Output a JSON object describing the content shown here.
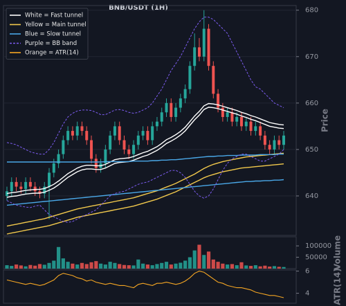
{
  "chart_data": [
    {
      "type": "candlestick",
      "title": "BNB/USDT (1H)",
      "y_label": "Price",
      "ylim": [
        631.5,
        681
      ],
      "yticks": [
        640,
        650,
        660,
        670,
        680
      ],
      "grid": true,
      "legend": "upper left",
      "up_color": "#26a69a",
      "down_color": "#ef5350",
      "open": [
        640,
        641,
        643,
        642,
        641.5,
        643,
        642,
        641,
        640.5,
        642,
        645,
        647,
        649,
        652,
        654,
        653,
        655,
        654,
        652,
        648,
        646,
        647,
        650,
        653,
        655,
        652,
        650,
        649,
        651,
        653,
        654,
        652,
        655,
        656,
        658,
        660,
        657,
        659,
        661,
        663,
        668,
        672,
        670,
        676,
        668,
        662,
        659,
        657,
        658,
        656,
        657,
        655,
        656,
        654,
        655,
        653,
        651,
        650,
        652,
        651
      ],
      "high": [
        642,
        644,
        644,
        643,
        644,
        644,
        643,
        642,
        643,
        646,
        648,
        650,
        653,
        655,
        655,
        656,
        656,
        655,
        653,
        649,
        648,
        651,
        654,
        656,
        656,
        653,
        651,
        652,
        654,
        655,
        655,
        656,
        657,
        659,
        661,
        661,
        660,
        662,
        664,
        669,
        675,
        674,
        680,
        677,
        669,
        663,
        660,
        659,
        659,
        658,
        658,
        657,
        657,
        656,
        656,
        654,
        652,
        653,
        653,
        654
      ],
      "low": [
        639,
        640,
        641,
        640.5,
        640.5,
        641,
        640,
        639.5,
        639.5,
        635,
        644,
        646,
        648,
        651,
        652,
        652,
        653,
        651,
        647,
        645,
        645,
        646,
        649,
        652,
        651,
        649,
        648,
        648,
        650,
        652,
        651,
        651,
        654,
        655,
        657,
        656,
        656,
        658,
        660,
        662,
        667,
        669,
        669,
        667,
        661,
        658,
        656,
        656,
        655,
        655,
        654,
        654,
        653,
        653,
        652,
        650,
        649,
        649,
        650,
        650
      ],
      "close": [
        641,
        643,
        642,
        641.5,
        643,
        642,
        641,
        640.5,
        642,
        645,
        647,
        649,
        652,
        654,
        653,
        655,
        654,
        652,
        648,
        646,
        647,
        650,
        653,
        655,
        652,
        650,
        649,
        651,
        653,
        654,
        652,
        655,
        656,
        658,
        660,
        657,
        659,
        661,
        663,
        668,
        672,
        670,
        676,
        668,
        662,
        659,
        657,
        658,
        656,
        657,
        655,
        656,
        654,
        655,
        653,
        651,
        650,
        652,
        651,
        653
      ],
      "bands": [
        {
          "name": "White = Fast tunnel",
          "color": "#ffffff",
          "dash": false,
          "upper": [
            640.5,
            640.7,
            640.8,
            641,
            641.2,
            641.3,
            641.4,
            641.4,
            641.6,
            642,
            642.5,
            643.2,
            644,
            644.8,
            645.4,
            646,
            646.4,
            646.6,
            646.6,
            646.5,
            646.5,
            646.8,
            647.3,
            647.8,
            648,
            648.1,
            648.2,
            648.5,
            648.9,
            649.3,
            649.6,
            650.1,
            650.6,
            651.3,
            652.1,
            652.6,
            653.2,
            653.9,
            654.8,
            656,
            657.2,
            658.2,
            659.4,
            659.9,
            659.8,
            659.6,
            659.3,
            659,
            658.7,
            658.4,
            658,
            657.7,
            657.3,
            657,
            656.6,
            656.2,
            655.8,
            655.6,
            655.4,
            655.3
          ],
          "lower": [
            639.7,
            639.9,
            640,
            640.2,
            640.4,
            640.5,
            640.6,
            640.6,
            640.8,
            641.2,
            641.7,
            642.4,
            643.2,
            644,
            644.6,
            645.2,
            645.6,
            645.8,
            645.8,
            645.7,
            645.7,
            646,
            646.5,
            647,
            647.2,
            647.3,
            647.4,
            647.7,
            648.1,
            648.5,
            648.8,
            649.3,
            649.8,
            650.5,
            651.3,
            651.8,
            652.4,
            653.1,
            654,
            655.2,
            656.4,
            657.4,
            658.6,
            659.1,
            659,
            658.8,
            658.5,
            658.2,
            657.9,
            657.6,
            657.2,
            656.9,
            656.5,
            656.2,
            655.8,
            655.4,
            655,
            654.8,
            654.6,
            654.5
          ]
        },
        {
          "name": "Yellow = Main tunnel",
          "color": "#f2c94c",
          "dash": false,
          "upper": [
            633.5,
            633.7,
            633.9,
            634.1,
            634.3,
            634.5,
            634.7,
            634.9,
            635.1,
            635.4,
            635.7,
            636,
            636.3,
            636.6,
            636.9,
            637.2,
            637.4,
            637.6,
            637.8,
            638,
            638.2,
            638.4,
            638.6,
            638.8,
            639,
            639.2,
            639.4,
            639.6,
            639.9,
            640.2,
            640.5,
            640.8,
            641.1,
            641.5,
            641.9,
            642.3,
            642.7,
            643.2,
            643.7,
            644.2,
            644.7,
            645.3,
            645.9,
            646.4,
            646.8,
            647.1,
            647.4,
            647.6,
            647.8,
            648,
            648.2,
            648.4,
            648.5,
            648.6,
            648.7,
            648.8,
            648.9,
            649,
            649.1,
            649.2
          ],
          "lower": [
            631.8,
            632,
            632.2,
            632.4,
            632.6,
            632.8,
            633,
            633.2,
            633.4,
            633.6,
            633.9,
            634.2,
            634.5,
            634.8,
            635.1,
            635.4,
            635.6,
            635.8,
            636,
            636.2,
            636.4,
            636.6,
            636.8,
            637,
            637.2,
            637.4,
            637.6,
            637.8,
            638.1,
            638.4,
            638.7,
            639,
            639.3,
            639.7,
            640.1,
            640.5,
            640.9,
            641.4,
            641.9,
            642.4,
            642.9,
            643.4,
            643.9,
            644.3,
            644.6,
            644.9,
            645.2,
            645.4,
            645.6,
            645.8,
            646,
            646.1,
            646.2,
            646.3,
            646.4,
            646.5,
            646.6,
            646.7,
            646.8,
            646.9
          ]
        },
        {
          "name": "Blue = Slow tunnel",
          "color": "#4aa8e8",
          "dash": false,
          "upper": [
            647.3,
            647.3,
            647.3,
            647.3,
            647.3,
            647.3,
            647.3,
            647.3,
            647.3,
            647.3,
            647.3,
            647.3,
            647.3,
            647.3,
            647.3,
            647.3,
            647.3,
            647.3,
            647.3,
            647.3,
            647.3,
            647.4,
            647.4,
            647.4,
            647.4,
            647.4,
            647.4,
            647.5,
            647.5,
            647.5,
            647.5,
            647.6,
            647.6,
            647.7,
            647.7,
            647.8,
            647.8,
            647.9,
            648,
            648.1,
            648.2,
            648.3,
            648.4,
            648.5,
            648.5,
            648.6,
            648.6,
            648.7,
            648.7,
            648.7,
            648.8,
            648.8,
            648.8,
            648.8,
            648.9,
            648.9,
            648.9,
            648.9,
            649,
            649
          ],
          "lower": [
            638,
            638.1,
            638.2,
            638.3,
            638.4,
            638.5,
            638.6,
            638.7,
            638.8,
            638.9,
            639,
            639.1,
            639.2,
            639.3,
            639.4,
            639.5,
            639.6,
            639.7,
            639.8,
            639.9,
            640,
            640.1,
            640.2,
            640.3,
            640.4,
            640.5,
            640.6,
            640.7,
            640.8,
            640.9,
            641,
            641.1,
            641.2,
            641.3,
            641.4,
            641.5,
            641.6,
            641.7,
            641.8,
            641.9,
            642,
            642.1,
            642.2,
            642.3,
            642.4,
            642.5,
            642.6,
            642.7,
            642.8,
            642.9,
            643,
            643.1,
            643.1,
            643.2,
            643.2,
            643.3,
            643.3,
            643.4,
            643.4,
            643.5
          ]
        },
        {
          "name": "Purple = BB band",
          "color": "#7c5cf0",
          "dash": true,
          "upper": [
            651.5,
            651.3,
            651,
            650.5,
            650,
            649.5,
            649.2,
            649,
            649,
            650,
            651.5,
            653.5,
            655.5,
            657,
            657.8,
            658.3,
            658.5,
            658.5,
            658.4,
            658,
            657.5,
            657.5,
            658,
            658.5,
            658.6,
            658.4,
            658,
            657.8,
            658,
            658.5,
            659,
            660,
            661.5,
            663,
            665,
            667,
            668.5,
            670,
            672,
            674,
            676,
            677.5,
            678.5,
            678.5,
            678,
            677,
            676,
            675,
            673,
            671,
            669,
            667,
            665,
            663.5,
            663,
            662,
            661,
            660,
            659.5,
            659
          ],
          "lower": [
            639,
            638.5,
            638,
            637.8,
            637.6,
            637.5,
            637.8,
            638,
            637,
            636,
            635.5,
            635,
            634.5,
            634.3,
            634.5,
            635,
            635.5,
            636,
            636.5,
            637,
            638,
            639,
            640,
            640.5,
            640.8,
            641,
            641.5,
            642,
            642.5,
            642.8,
            643,
            643.5,
            644,
            644.5,
            645,
            645.5,
            645.5,
            645,
            644,
            642.5,
            641,
            640,
            639.5,
            640,
            641.5,
            643.5,
            645.5,
            647,
            648,
            648.5,
            649,
            649,
            648.5,
            648,
            647.5,
            647.5,
            648,
            648.5,
            649,
            650
          ]
        }
      ]
    },
    {
      "type": "bar",
      "y_label": "Volume",
      "ylim": [
        0,
        140000
      ],
      "yticks": [
        50000,
        100000
      ],
      "values": [
        15000,
        12000,
        18000,
        14000,
        10000,
        16000,
        13000,
        20000,
        17000,
        25000,
        35000,
        95000,
        45000,
        30000,
        22000,
        18000,
        25000,
        20000,
        28000,
        33000,
        22000,
        18000,
        30000,
        25000,
        20000,
        16000,
        15000,
        14000,
        40000,
        22000,
        18000,
        15000,
        20000,
        25000,
        30000,
        18000,
        22000,
        26000,
        35000,
        50000,
        80000,
        105000,
        60000,
        75000,
        40000,
        30000,
        22000,
        18000,
        20000,
        15000,
        28000,
        14000,
        12000,
        15000,
        10000,
        13000,
        9000,
        11000,
        8000,
        7000
      ]
    },
    {
      "type": "line",
      "y_label": "ATR(14)",
      "ylim": [
        3.1,
        6.1
      ],
      "yticks": [
        4,
        6
      ],
      "series": [
        {
          "name": "Orange = ATR(14)",
          "color": "#f5a623",
          "values": [
            5.2,
            5.1,
            5,
            4.9,
            4.8,
            4.9,
            4.8,
            4.7,
            4.8,
            5.0,
            5.2,
            5.6,
            5.8,
            5.7,
            5.6,
            5.4,
            5.3,
            5.1,
            5.2,
            5.0,
            4.9,
            4.8,
            4.9,
            4.8,
            4.7,
            4.7,
            4.6,
            4.5,
            4.8,
            4.9,
            4.8,
            4.7,
            4.9,
            4.9,
            5.0,
            4.9,
            4.8,
            4.9,
            5.1,
            5.4,
            5.8,
            6.0,
            5.9,
            5.6,
            5.3,
            5.0,
            4.9,
            4.7,
            4.6,
            4.5,
            4.5,
            4.4,
            4.3,
            4.1,
            4.0,
            3.9,
            3.8,
            3.8,
            3.7,
            3.6
          ]
        }
      ]
    }
  ]
}
